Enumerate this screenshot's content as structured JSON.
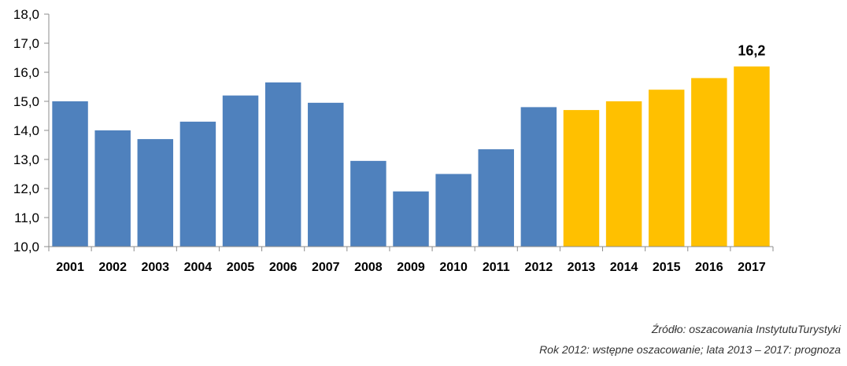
{
  "chart_data": {
    "type": "bar",
    "categories": [
      "2001",
      "2002",
      "2003",
      "2004",
      "2005",
      "2006",
      "2007",
      "2008",
      "2009",
      "2010",
      "2011",
      "2012",
      "2013",
      "2014",
      "2015",
      "2016",
      "2017"
    ],
    "values": [
      15.0,
      14.0,
      13.7,
      14.3,
      15.2,
      15.65,
      14.95,
      12.95,
      11.9,
      12.5,
      13.35,
      14.8,
      14.7,
      15.0,
      15.4,
      15.8,
      16.2
    ],
    "bar_colors": [
      "#4F81BD",
      "#4F81BD",
      "#4F81BD",
      "#4F81BD",
      "#4F81BD",
      "#4F81BD",
      "#4F81BD",
      "#4F81BD",
      "#4F81BD",
      "#4F81BD",
      "#4F81BD",
      "#4F81BD",
      "#FFC000",
      "#FFC000",
      "#FFC000",
      "#FFC000",
      "#FFC000"
    ],
    "yticks": [
      "10,0",
      "11,0",
      "12,0",
      "13,0",
      "14,0",
      "15,0",
      "16,0",
      "17,0",
      "18,0"
    ],
    "ylim": [
      10,
      18
    ],
    "data_labels": [
      {
        "category": "2017",
        "text": "16,2"
      }
    ],
    "grid": false,
    "colors": {
      "historical": "#4F81BD",
      "forecast": "#FFC000"
    }
  },
  "source": {
    "line1": "Źródło: oszacowania InstytutuTurystyki",
    "line2": "Rok 2012: wstępne oszacowanie; lata 2013 – 2017: prognoza"
  }
}
